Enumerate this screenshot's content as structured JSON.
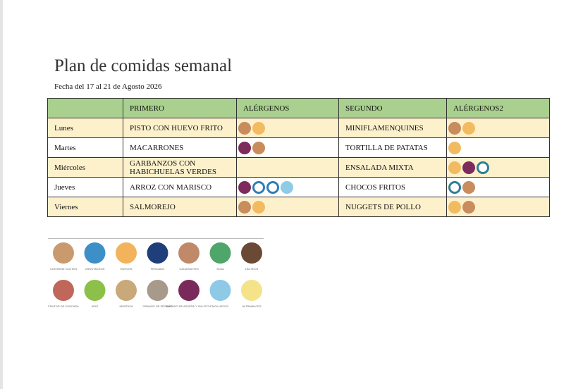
{
  "header": {
    "title": "Plan de comidas semanal",
    "date": "Fecha del 17 al 21 de Agosto 2026"
  },
  "table": {
    "columns": [
      "",
      "PRIMERO",
      "ALÉRGENOS",
      "SEGUNDO",
      "ALÉRGENOS2"
    ],
    "rows": [
      [
        "Lunes",
        "PISTO CON HUEVO FRITO",
        "MINIFLAMENQUINES"
      ],
      [
        "Martes",
        "MACARRONES",
        "TORTILLA DE PATATAS"
      ],
      [
        "Miércoles",
        "GARBANZOS CON HABICHUELAS VERDES",
        "ENSALADA MIXTA"
      ],
      [
        "Jueves",
        "ARROZ CON MARISCO",
        "CHOCOS FRITOS"
      ],
      [
        "Viernes",
        "SALMOREJO",
        "NUGGETS DE POLLO"
      ]
    ]
  },
  "legend": {
    "items": [
      "CONTIENE GLUTEN",
      "CRUSTÁCEOS",
      "HUEVOS",
      "PESCADO",
      "CACAHUETES",
      "SOJA",
      "LÁCTEOS",
      "FRUTOS DE CÁSCARA",
      "APIO",
      "MOSTAZA",
      "GRANOS DE SÉSAMO",
      "DIÓXIDO DE AZUFRE Y SULFITOS",
      "MOLUSCOS",
      "ALTRAMUCES"
    ]
  }
}
